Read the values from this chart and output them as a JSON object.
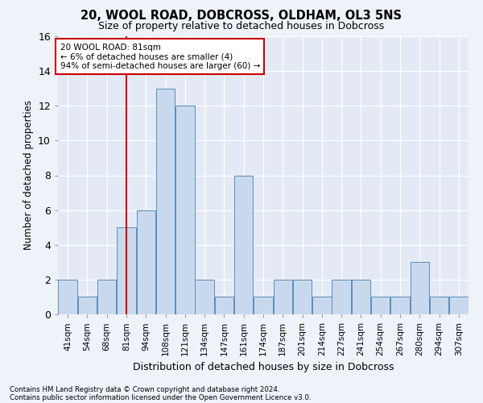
{
  "title1": "20, WOOL ROAD, DOBCROSS, OLDHAM, OL3 5NS",
  "title2": "Size of property relative to detached houses in Dobcross",
  "xlabel": "Distribution of detached houses by size in Dobcross",
  "ylabel": "Number of detached properties",
  "categories": [
    "41sqm",
    "54sqm",
    "68sqm",
    "81sqm",
    "94sqm",
    "108sqm",
    "121sqm",
    "134sqm",
    "147sqm",
    "161sqm",
    "174sqm",
    "187sqm",
    "201sqm",
    "214sqm",
    "227sqm",
    "241sqm",
    "254sqm",
    "267sqm",
    "280sqm",
    "294sqm",
    "307sqm"
  ],
  "values": [
    2,
    1,
    2,
    5,
    6,
    13,
    12,
    2,
    1,
    8,
    1,
    2,
    2,
    1,
    2,
    2,
    1,
    1,
    3,
    1,
    1
  ],
  "bar_color": "#c9d9ed",
  "bar_edge_color": "#5b8db8",
  "highlight_index": 3,
  "highlight_line_color": "#cc0000",
  "ylim": [
    0,
    16
  ],
  "yticks": [
    0,
    2,
    4,
    6,
    8,
    10,
    12,
    14,
    16
  ],
  "annotation_title": "20 WOOL ROAD: 81sqm",
  "annotation_line1": "← 6% of detached houses are smaller (4)",
  "annotation_line2": "94% of semi-detached houses are larger (60) →",
  "annotation_box_facecolor": "#ffffff",
  "annotation_box_edgecolor": "#cc0000",
  "footer1": "Contains HM Land Registry data © Crown copyright and database right 2024.",
  "footer2": "Contains public sector information licensed under the Open Government Licence v3.0.",
  "background_color": "#eef2f9",
  "plot_background_color": "#e4eaf5"
}
